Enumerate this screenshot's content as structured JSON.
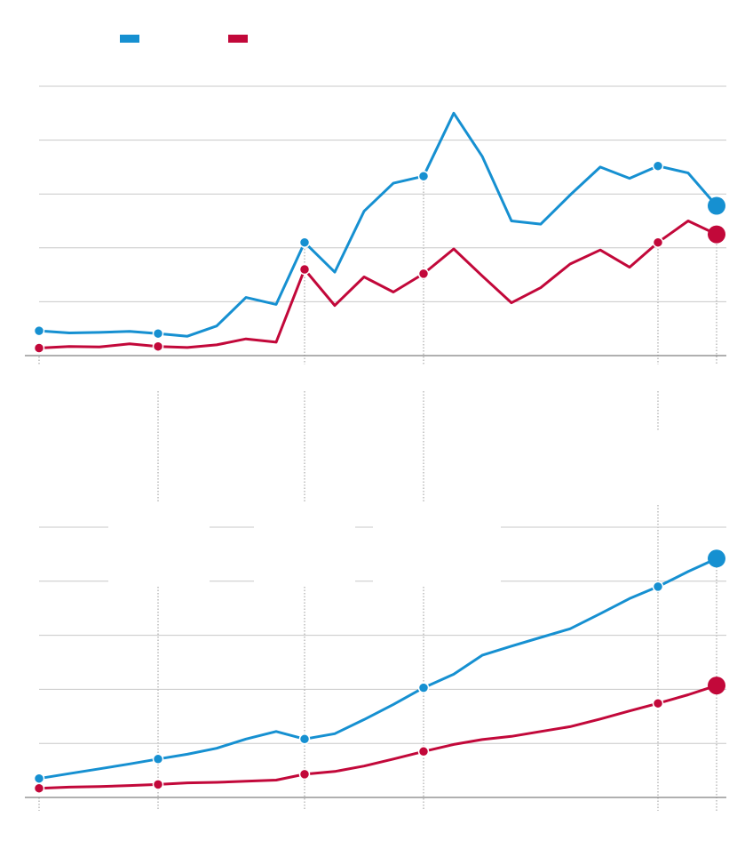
{
  "colors": {
    "blue": "#1690d1",
    "red": "#c2083a",
    "grid": "#c8c8c8",
    "axis": "#808080",
    "marker": "#9a9a9a"
  },
  "legend": {
    "items": [
      {
        "color_key": "blue"
      },
      {
        "color_key": "red"
      }
    ]
  },
  "chart_data": [
    {
      "type": "line",
      "grid": true,
      "ylim": [
        0,
        5
      ],
      "gridlines": [
        1,
        2,
        3,
        4,
        5
      ],
      "x": [
        0,
        1,
        2,
        3,
        4,
        5,
        6,
        7,
        8,
        9,
        10,
        11,
        12,
        13,
        14,
        15,
        16,
        17,
        18,
        19,
        20,
        21,
        22,
        23
      ],
      "markers_at": [
        4,
        9,
        13,
        21,
        23
      ],
      "series": [
        {
          "color_key": "blue",
          "values": [
            0.46,
            0.42,
            0.43,
            0.45,
            0.41,
            0.36,
            0.55,
            1.08,
            0.95,
            2.1,
            1.55,
            2.68,
            3.2,
            3.33,
            4.5,
            3.7,
            2.5,
            2.44,
            2.98,
            3.5,
            3.29,
            3.52,
            3.39,
            2.78
          ],
          "dots_at": [
            0,
            4,
            9,
            13,
            21,
            23
          ]
        },
        {
          "color_key": "red",
          "values": [
            0.14,
            0.17,
            0.16,
            0.22,
            0.17,
            0.15,
            0.2,
            0.31,
            0.25,
            1.6,
            0.93,
            1.46,
            1.18,
            1.52,
            1.98,
            1.48,
            0.98,
            1.26,
            1.7,
            1.96,
            1.64,
            2.1,
            2.5,
            2.25
          ],
          "dots_at": [
            0,
            4,
            9,
            13,
            21,
            23
          ]
        }
      ]
    },
    {
      "type": "line",
      "grid": true,
      "ylim": [
        0,
        5
      ],
      "gridlines": [
        1,
        2,
        3,
        4,
        5
      ],
      "x": [
        0,
        1,
        2,
        3,
        4,
        5,
        6,
        7,
        8,
        9,
        10,
        11,
        12,
        13,
        14,
        15,
        16,
        17,
        18,
        19,
        20,
        21,
        22,
        23
      ],
      "markers_at": [
        4,
        9,
        13,
        21,
        23
      ],
      "series": [
        {
          "color_key": "blue",
          "values": [
            0.35,
            0.44,
            0.53,
            0.62,
            0.71,
            0.8,
            0.91,
            1.08,
            1.22,
            1.08,
            1.18,
            1.44,
            1.72,
            2.03,
            2.28,
            2.63,
            2.8,
            2.96,
            3.12,
            3.4,
            3.68,
            3.9,
            4.18,
            4.42
          ],
          "dots_at": [
            0,
            4,
            9,
            13,
            21,
            23
          ]
        },
        {
          "color_key": "red",
          "values": [
            0.17,
            0.19,
            0.2,
            0.22,
            0.24,
            0.27,
            0.28,
            0.3,
            0.32,
            0.43,
            0.48,
            0.58,
            0.71,
            0.85,
            0.98,
            1.07,
            1.13,
            1.22,
            1.31,
            1.45,
            1.6,
            1.74,
            1.9,
            2.07
          ],
          "dots_at": [
            0,
            4,
            9,
            13,
            21,
            23
          ]
        }
      ]
    }
  ]
}
